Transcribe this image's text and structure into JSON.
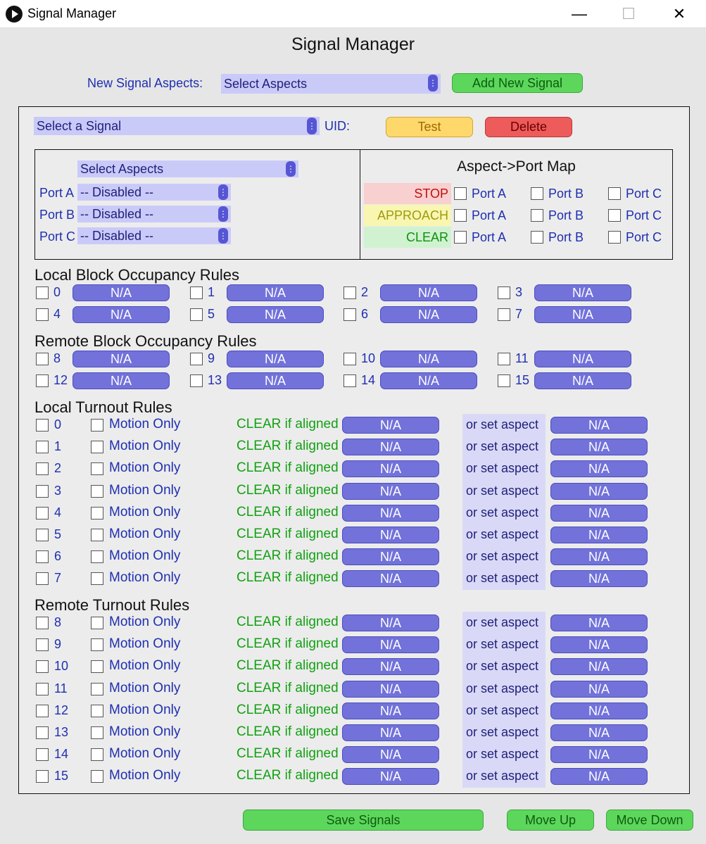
{
  "window": {
    "title": "Signal Manager",
    "min_glyph": "—",
    "max_glyph": "☐",
    "close_glyph": "✕"
  },
  "heading": "Signal Manager",
  "top": {
    "new_aspects_label": "New Signal Aspects:",
    "aspects_dropdown": "Select Aspects",
    "add_button": "Add New Signal"
  },
  "signal": {
    "select_dropdown": "Select a Signal",
    "uid_label": "UID:",
    "test_button": "Test",
    "delete_button": "Delete"
  },
  "ports": {
    "aspects_dropdown": "Select Aspects",
    "rows": [
      {
        "label": "Port A",
        "value": "-- Disabled --"
      },
      {
        "label": "Port B",
        "value": "-- Disabled --"
      },
      {
        "label": "Port C",
        "value": "-- Disabled --"
      }
    ]
  },
  "aspect_map": {
    "title": "Aspect->Port Map",
    "port_labels": [
      "Port A",
      "Port B",
      "Port C"
    ],
    "aspects": [
      {
        "name": "STOP",
        "bg": "#f8d0d0",
        "color": "#c01010"
      },
      {
        "name": "APPROACH",
        "bg": "#f8f6b0",
        "color": "#a09a10"
      },
      {
        "name": "CLEAR",
        "bg": "#d0f2d0",
        "color": "#109010"
      }
    ]
  },
  "local_block": {
    "title": "Local Block Occupancy Rules",
    "items": [
      "0",
      "1",
      "2",
      "3",
      "4",
      "5",
      "6",
      "7"
    ],
    "value": "N/A"
  },
  "remote_block": {
    "title": "Remote Block Occupancy Rules",
    "items": [
      "8",
      "9",
      "10",
      "11",
      "12",
      "13",
      "14",
      "15"
    ],
    "value": "N/A"
  },
  "turnout_text": {
    "motion": "Motion Only",
    "clear": "CLEAR if aligned",
    "set": "or set aspect",
    "value": "N/A"
  },
  "local_turnout": {
    "title": "Local Turnout Rules",
    "items": [
      "0",
      "1",
      "2",
      "3",
      "4",
      "5",
      "6",
      "7"
    ]
  },
  "remote_turnout": {
    "title": "Remote Turnout Rules",
    "items": [
      "8",
      "9",
      "10",
      "11",
      "12",
      "13",
      "14",
      "15"
    ]
  },
  "footer": {
    "save": "Save Signals",
    "up": "Move Up",
    "down": "Move Down"
  }
}
